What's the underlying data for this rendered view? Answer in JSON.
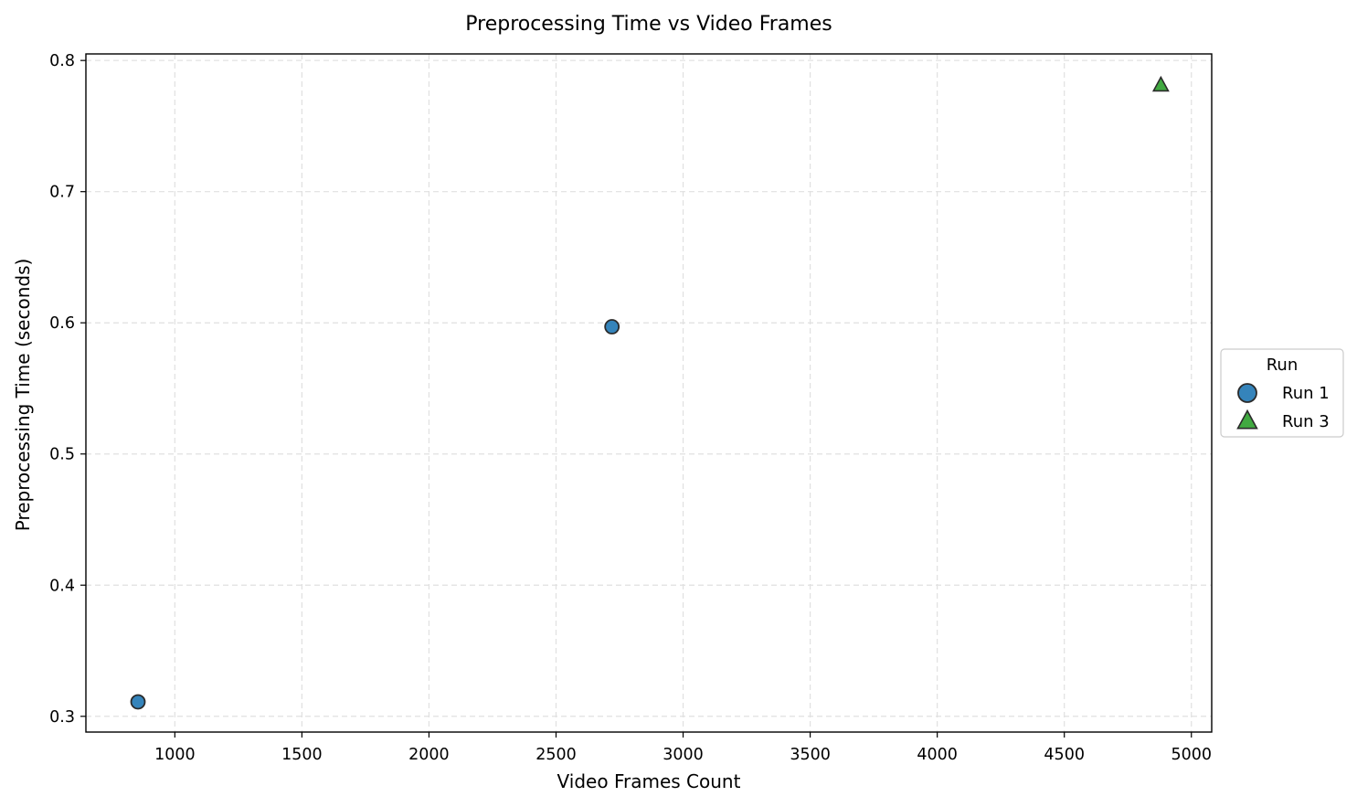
{
  "chart_data": {
    "type": "scatter",
    "title": "Preprocessing Time vs Video Frames",
    "xlabel": "Video Frames Count",
    "ylabel": "Preprocessing Time (seconds)",
    "xlim": [
      650,
      5080
    ],
    "ylim": [
      0.288,
      0.805
    ],
    "x_ticks": [
      1000,
      1500,
      2000,
      2500,
      3000,
      3500,
      4000,
      4500,
      5000
    ],
    "y_ticks": [
      0.3,
      0.4,
      0.5,
      0.6,
      0.7,
      0.8
    ],
    "x_tick_labels": [
      "1000",
      "1500",
      "2000",
      "2500",
      "3000",
      "3500",
      "4000",
      "4500",
      "5000"
    ],
    "y_tick_labels": [
      "0.3",
      "0.4",
      "0.5",
      "0.6",
      "0.7",
      "0.8"
    ],
    "grid": true,
    "legend": {
      "title": "Run",
      "placement": "center-right outside plot"
    },
    "series": [
      {
        "name": "Run 1",
        "marker": "circle",
        "color": "#1f77b4",
        "points": [
          {
            "x": 855,
            "y": 0.311
          },
          {
            "x": 2720,
            "y": 0.597
          }
        ]
      },
      {
        "name": "Run 3",
        "marker": "triangle",
        "color": "#2ca02c",
        "points": [
          {
            "x": 4880,
            "y": 0.781
          }
        ]
      }
    ]
  }
}
